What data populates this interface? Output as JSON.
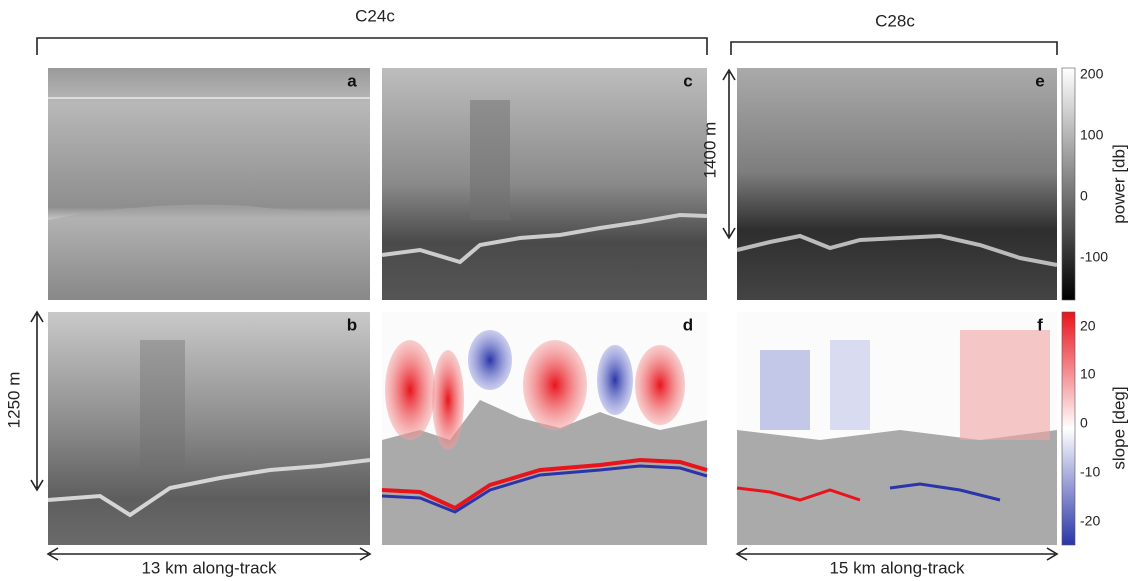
{
  "groups": [
    {
      "label": "C24c"
    },
    {
      "label": "C28c"
    }
  ],
  "panels": [
    "a",
    "b",
    "c",
    "d",
    "e",
    "f"
  ],
  "scale_bars": {
    "vertical_left": "1250 m",
    "vertical_right": "1400 m",
    "horizontal_left": "13 km along-track",
    "horizontal_right": "15 km along-track"
  },
  "colorbars": [
    {
      "label": "power [db]",
      "ticks": [
        200,
        100,
        0,
        -100
      ]
    },
    {
      "label": "slope [deg]",
      "ticks": [
        20,
        10,
        0,
        -10,
        -20
      ]
    }
  ]
}
